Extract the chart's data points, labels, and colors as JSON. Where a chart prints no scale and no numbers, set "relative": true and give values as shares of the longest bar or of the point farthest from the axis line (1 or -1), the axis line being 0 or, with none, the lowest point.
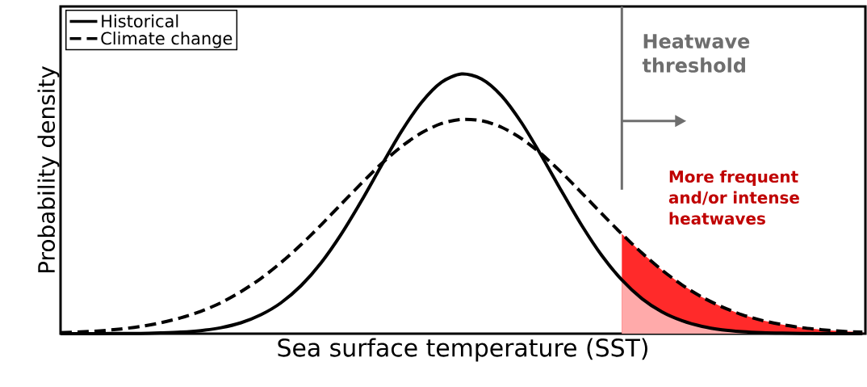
{
  "chart_data": {
    "type": "line",
    "relative": true,
    "tick_labels": false,
    "legend": "top left",
    "xlabel": "Sea surface temperature (SST)",
    "ylabel": "Probability density",
    "categories": [
      null,
      null,
      null,
      null,
      null,
      null,
      null,
      null,
      null,
      null,
      null,
      null,
      null,
      null,
      null,
      null,
      null,
      null,
      null,
      null,
      null,
      null,
      null,
      null,
      null,
      null,
      null,
      null,
      null,
      null,
      null,
      null,
      null,
      null,
      null,
      null,
      null,
      null,
      null,
      null,
      null
    ],
    "series": [
      {
        "type": "area",
        "color": "#ff2a2a",
        "values": [
          null,
          null,
          null,
          null,
          null,
          null,
          null,
          null,
          null,
          null,
          null,
          null,
          null,
          null,
          null,
          null,
          null,
          null,
          null,
          null,
          null,
          null,
          null,
          null,
          null,
          null,
          null,
          null,
          0.384,
          0.311,
          0.245,
          0.188,
          0.141,
          0.103,
          0.073,
          0.051,
          0.035,
          0.023,
          0.015,
          0.009,
          0.006
        ]
      },
      {
        "type": "area",
        "color": "#ffaaaa",
        "values": [
          null,
          null,
          null,
          null,
          null,
          null,
          null,
          null,
          null,
          null,
          null,
          null,
          null,
          null,
          null,
          null,
          null,
          null,
          null,
          null,
          null,
          null,
          null,
          null,
          null,
          null,
          null,
          null,
          0.207,
          0.135,
          0.084,
          0.05,
          0.028,
          0.015,
          0.008,
          0.004,
          0.002,
          0.001,
          0.0,
          0.0,
          0.0
        ]
      },
      {
        "name": "Historical",
        "color": "#000000",
        "line_style": "solid",
        "values": [
          0.0,
          0.0,
          0.0,
          0.001,
          0.001,
          0.003,
          0.006,
          0.012,
          0.023,
          0.042,
          0.073,
          0.119,
          0.185,
          0.273,
          0.383,
          0.51,
          0.646,
          0.778,
          0.89,
          0.968,
          1.0,
          0.981,
          0.916,
          0.812,
          0.684,
          0.548,
          0.417,
          0.301,
          0.207,
          0.135,
          0.084,
          0.05,
          0.028,
          0.015,
          0.008,
          0.004,
          0.002,
          0.001,
          0.0,
          0.0,
          0.0
        ]
      },
      {
        "name": "Climate change",
        "color": "#000000",
        "line_style": "dashed",
        "values": [
          0.004,
          0.007,
          0.011,
          0.018,
          0.028,
          0.042,
          0.061,
          0.086,
          0.119,
          0.162,
          0.213,
          0.274,
          0.343,
          0.419,
          0.499,
          0.578,
          0.654,
          0.72,
          0.773,
          0.809,
          0.825,
          0.82,
          0.795,
          0.751,
          0.691,
          0.62,
          0.542,
          0.462,
          0.384,
          0.311,
          0.245,
          0.188,
          0.141,
          0.103,
          0.073,
          0.051,
          0.035,
          0.023,
          0.015,
          0.009,
          0.006
        ]
      }
    ],
    "annotations": [
      "Heatwave threshold",
      "More frequent and/or intense heatwaves"
    ]
  }
}
